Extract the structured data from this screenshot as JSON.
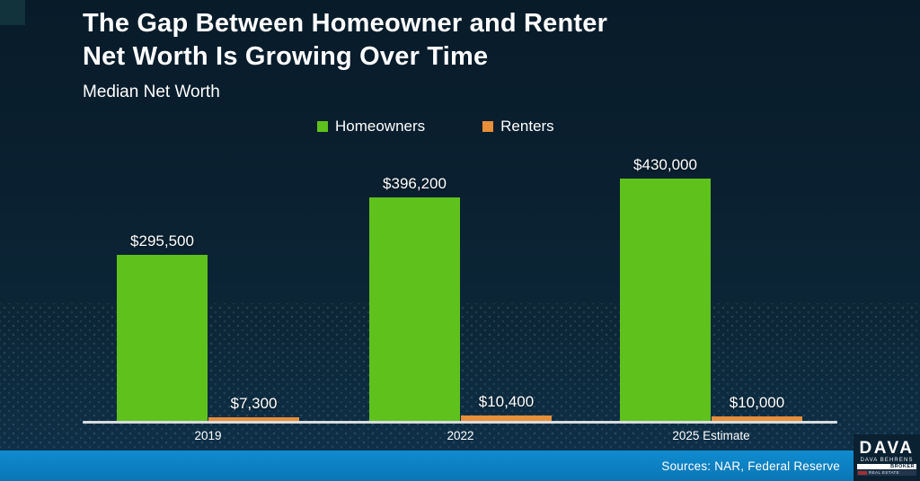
{
  "title": {
    "line1": "The Gap Between Homeowner and Renter",
    "line2": "Net Worth Is Growing Over Time"
  },
  "subtitle": "Median Net Worth",
  "legend": [
    {
      "label": "Homeowners",
      "color": "#5fc11c"
    },
    {
      "label": "Renters",
      "color": "#e78f39"
    }
  ],
  "chart_data": {
    "type": "bar",
    "title": "Median Net Worth",
    "categories": [
      "2019",
      "2022",
      "2025 Estimate"
    ],
    "series": [
      {
        "name": "Homeowners",
        "color": "#5fc11c",
        "values": [
          295500,
          396200,
          430000
        ],
        "labels": [
          "$295,500",
          "$396,200",
          "$430,000"
        ]
      },
      {
        "name": "Renters",
        "color": "#e78f39",
        "values": [
          7300,
          10400,
          10000
        ],
        "labels": [
          "$7,300",
          "$10,400",
          "$10,000"
        ]
      }
    ],
    "ylim": [
      0,
      430000
    ],
    "grid": false,
    "legend_position": "top",
    "background": "#0b2233"
  },
  "footer": {
    "sources": "Sources: NAR, Federal Reserve"
  },
  "logo": {
    "title": "DAVA",
    "subtitle": "DAVA BEHRENS",
    "badge": "BROKER",
    "tagline": "REAL ESTATE"
  }
}
